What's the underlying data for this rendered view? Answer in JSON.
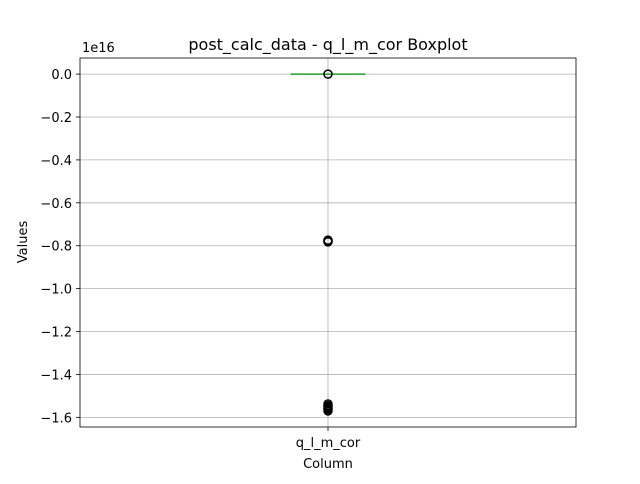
{
  "chart_data": {
    "type": "box",
    "title": "post_calc_data - q_l_m_cor Boxplot",
    "xlabel": "Column",
    "ylabel": "Values",
    "y_scale_label": "1e16",
    "categories": [
      "q_l_m_cor"
    ],
    "ylim": [
      -1.645,
      0.075
    ],
    "yticks": [
      0.0,
      -0.2,
      -0.4,
      -0.6,
      -0.8,
      -1.0,
      -1.2,
      -1.4,
      -1.6
    ],
    "ytick_labels": [
      "0.0",
      "−0.2",
      "−0.4",
      "−0.6",
      "−0.8",
      "−1.0",
      "−1.2",
      "−1.4",
      "−1.6"
    ],
    "grid": true,
    "box": {
      "median": 0.0,
      "q1": 0.0,
      "q3": 0.0,
      "whisker_low": 0.0,
      "whisker_high": 0.0
    },
    "outliers": [
      0.0,
      -0.774,
      -0.778,
      -0.782,
      -1.538,
      -1.546,
      -1.552,
      -1.558,
      -1.564,
      -1.57
    ],
    "colors": {
      "median": "#2ca02c",
      "box": "#1f77b4",
      "grid": "#b0b0b0",
      "outlier_edge": "#000000"
    }
  }
}
